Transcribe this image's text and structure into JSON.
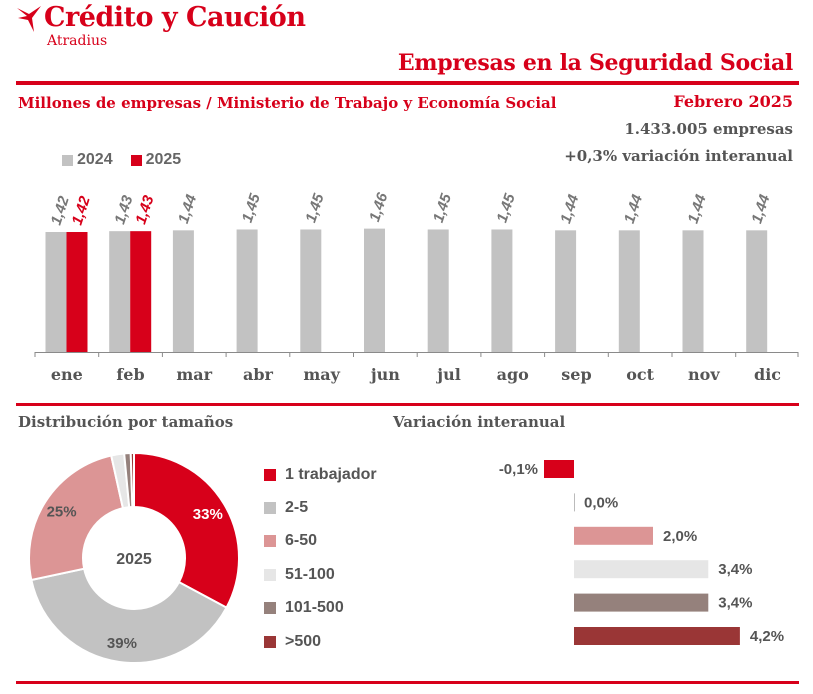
{
  "brand": {
    "name": "Crédito y Caución",
    "sub": "Atradius"
  },
  "page_title": "Empresas en la Seguridad Social",
  "subtitle": "Millones de empresas / Ministerio de Trabajo y Economía Social",
  "period": "Febrero 2025",
  "stat_total": "1.433.005 empresas",
  "stat_variation": "+0,3% variación interanual",
  "colors": {
    "accent": "#d7001a",
    "grey": "#c2c2c2"
  },
  "chart_data": [
    {
      "type": "bar",
      "categories": [
        "ene",
        "feb",
        "mar",
        "abr",
        "may",
        "jun",
        "jul",
        "ago",
        "sep",
        "oct",
        "nov",
        "dic"
      ],
      "series": [
        {
          "name": "2024",
          "color": "#c2c2c2",
          "values": [
            1.42,
            1.43,
            1.44,
            1.45,
            1.45,
            1.46,
            1.45,
            1.45,
            1.44,
            1.44,
            1.44,
            1.44
          ],
          "labels": [
            "1,42",
            "1,43",
            "1,44",
            "1,45",
            "1,45",
            "1,46",
            "1,45",
            "1,45",
            "1,44",
            "1,44",
            "1,44",
            "1,44"
          ]
        },
        {
          "name": "2025",
          "color": "#d7001a",
          "values": [
            1.42,
            1.43,
            null,
            null,
            null,
            null,
            null,
            null,
            null,
            null,
            null,
            null
          ],
          "labels": [
            "1,42",
            "1,43",
            "",
            "",
            "",
            "",
            "",
            "",
            "",
            "",
            "",
            ""
          ]
        }
      ],
      "legend": "top-left"
    },
    {
      "type": "pie",
      "title": "Distribución por tamaños",
      "center_label": "2025",
      "categories": [
        "1 trabajador",
        "2-5",
        "6-50",
        "51-100",
        "101-500",
        ">500"
      ],
      "values": [
        33,
        39,
        25,
        2,
        1,
        0.5
      ],
      "labels": [
        "33%",
        "39%",
        "25%",
        "",
        "",
        ""
      ],
      "colors": [
        "#d7001a",
        "#c2c2c2",
        "#dc9595",
        "#e6e6e6",
        "#95817c",
        "#9a3636"
      ]
    },
    {
      "type": "bar",
      "title": "Variación interanual",
      "orientation": "horizontal",
      "categories": [
        "1 trabajador",
        "2-5",
        "6-50",
        "51-100",
        "101-500",
        ">500"
      ],
      "values": [
        -0.1,
        0.0,
        2.0,
        3.4,
        3.4,
        4.2
      ],
      "labels": [
        "-0,1%",
        "0,0%",
        "2,0%",
        "3,4%",
        "3,4%",
        "4,2%"
      ],
      "colors": [
        "#d7001a",
        "#c2c2c2",
        "#dc9595",
        "#e6e6e6",
        "#95817c",
        "#9a3636"
      ]
    }
  ]
}
